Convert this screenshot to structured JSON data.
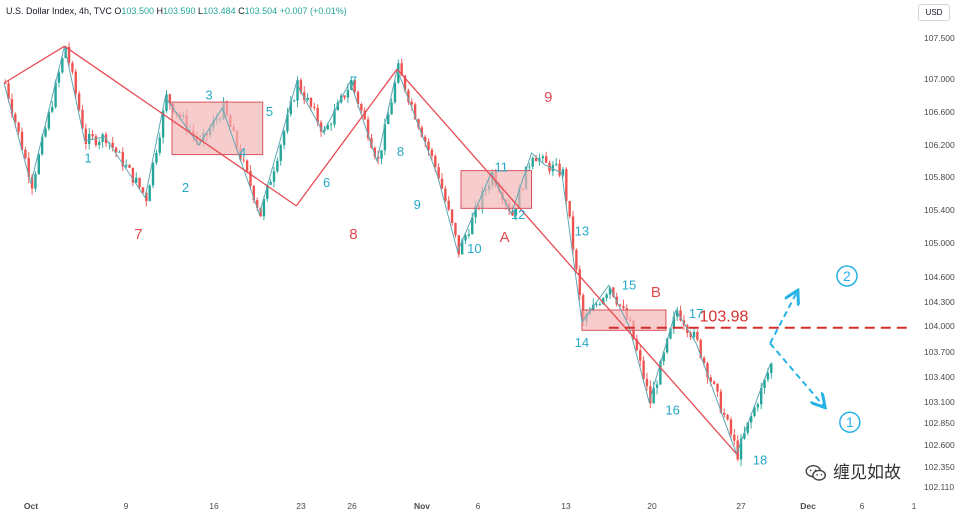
{
  "header": {
    "title": "U.S. Dollar Index, 4h, TVC",
    "o_label": "O",
    "o_value": "103.500",
    "h_label": "H",
    "h_value": "103.590",
    "l_label": "L",
    "l_value": "103.484",
    "c_label": "C",
    "c_value": "103.504",
    "change": "+0.007 (+0.01%)"
  },
  "currency_button": "USD",
  "watermark": "缠见如故",
  "chart_data": {
    "type": "candlestick",
    "x_axis": {
      "ticks": [
        "Oct",
        "9",
        "16",
        "23",
        "26",
        "Nov",
        "6",
        "13",
        "20",
        "27",
        "Dec",
        "6",
        "1"
      ]
    },
    "y_axis": {
      "ticks": [
        "107.500",
        "107.000",
        "106.600",
        "106.200",
        "105.800",
        "105.400",
        "105.000",
        "104.600",
        "104.300",
        "104.000",
        "103.700",
        "103.400",
        "103.100",
        "102.850",
        "102.600",
        "102.350",
        "102.110"
      ],
      "range": [
        102.05,
        107.8
      ]
    },
    "zigzag_points": [
      {
        "bar": 0,
        "price": 106.95
      },
      {
        "bar": 8,
        "price": 105.72
      },
      {
        "bar": 18,
        "price": 107.4
      },
      {
        "bar": 24,
        "price": 106.25
      },
      {
        "bar": 30,
        "price": 106.3
      },
      {
        "bar": 42,
        "price": 105.55
      },
      {
        "bar": 48,
        "price": 106.78
      },
      {
        "bar": 58,
        "price": 106.2
      },
      {
        "bar": 65,
        "price": 106.65
      },
      {
        "bar": 76,
        "price": 105.35
      },
      {
        "bar": 87,
        "price": 106.95
      },
      {
        "bar": 95,
        "price": 106.35
      },
      {
        "bar": 103,
        "price": 106.97
      },
      {
        "bar": 111,
        "price": 106.0
      },
      {
        "bar": 117,
        "price": 107.12
      },
      {
        "bar": 129,
        "price": 105.82
      },
      {
        "bar": 135,
        "price": 104.9
      },
      {
        "bar": 145,
        "price": 105.85
      },
      {
        "bar": 151,
        "price": 105.35
      },
      {
        "bar": 157,
        "price": 106.1
      },
      {
        "bar": 161,
        "price": 105.95
      },
      {
        "bar": 166,
        "price": 105.85
      },
      {
        "bar": 172,
        "price": 104.05
      },
      {
        "bar": 180,
        "price": 104.5
      },
      {
        "bar": 186,
        "price": 104.0
      },
      {
        "bar": 192,
        "price": 103.1
      },
      {
        "bar": 200,
        "price": 104.2
      },
      {
        "bar": 206,
        "price": 103.8
      },
      {
        "bar": 218,
        "price": 102.5
      },
      {
        "bar": 228,
        "price": 103.55
      }
    ],
    "big_segments": [
      {
        "from": {
          "bar": 0,
          "price": 106.95
        },
        "to": {
          "bar": 18,
          "price": 107.4
        }
      },
      {
        "from": {
          "bar": 18,
          "price": 107.4
        },
        "to": {
          "bar": 87,
          "price": 105.45
        }
      },
      {
        "from": {
          "bar": 87,
          "price": 105.45
        },
        "to": {
          "bar": 117,
          "price": 107.12
        }
      },
      {
        "from": {
          "bar": 117,
          "price": 107.12
        },
        "to": {
          "bar": 218,
          "price": 102.5
        }
      }
    ],
    "boxes": [
      {
        "bar_from": 50,
        "bar_to": 77,
        "price_top": 106.72,
        "price_bottom": 106.08
      },
      {
        "bar_from": 136,
        "bar_to": 157,
        "price_top": 105.88,
        "price_bottom": 105.42
      },
      {
        "bar_from": 172,
        "bar_to": 197,
        "price_top": 104.2,
        "price_bottom": 103.95
      }
    ],
    "level": {
      "price": 103.98,
      "label": "103.98",
      "bar_from": 180,
      "bar_to": 273
    },
    "scenarios": [
      {
        "label": "2",
        "from": {
          "bar": 228,
          "price": 103.8
        },
        "to": {
          "bar": 236,
          "price": 104.42
        }
      },
      {
        "label": "1",
        "from": {
          "bar": 228,
          "price": 103.8
        },
        "to": {
          "bar": 244,
          "price": 103.05
        }
      }
    ],
    "labels_small": [
      {
        "text": "1",
        "bar": 25,
        "price": 105.98
      },
      {
        "text": "2",
        "bar": 54,
        "price": 105.62
      },
      {
        "text": "3",
        "bar": 61,
        "price": 106.75
      },
      {
        "text": "4",
        "bar": 71,
        "price": 106.05
      },
      {
        "text": "5",
        "bar": 79,
        "price": 106.55
      },
      {
        "text": "6",
        "bar": 96,
        "price": 105.68
      },
      {
        "text": "7",
        "bar": 104,
        "price": 106.92
      },
      {
        "text": "8",
        "bar": 118,
        "price": 106.06
      },
      {
        "text": "9",
        "bar": 123,
        "price": 105.41
      },
      {
        "text": "10",
        "bar": 140,
        "price": 104.88
      },
      {
        "text": "11",
        "bar": 148,
        "price": 105.87
      },
      {
        "text": "12",
        "bar": 153,
        "price": 105.29
      },
      {
        "text": "13",
        "bar": 172,
        "price": 105.09
      },
      {
        "text": "14",
        "bar": 172,
        "price": 103.76
      },
      {
        "text": "15",
        "bar": 186,
        "price": 104.45
      },
      {
        "text": "16",
        "bar": 199,
        "price": 102.95
      },
      {
        "text": "17",
        "bar": 206,
        "price": 104.1
      },
      {
        "text": "18",
        "bar": 225,
        "price": 102.38
      }
    ],
    "labels_big": [
      {
        "text": "7",
        "bar": 40,
        "price": 105.05
      },
      {
        "text": "8",
        "bar": 104,
        "price": 105.05
      },
      {
        "text": "9",
        "bar": 162,
        "price": 106.72
      },
      {
        "text": "A",
        "bar": 149,
        "price": 105.01
      },
      {
        "text": "B",
        "bar": 194,
        "price": 104.36
      }
    ],
    "last_close": 103.504
  },
  "colors": {
    "up": "#26a69a",
    "down": "#ef5350",
    "red_line": "#e84b52",
    "teal_line": "#5fa8b5",
    "box_fill": "#f4b6b8",
    "box_stroke": "#d9535c",
    "level": "#d32f2f",
    "scenario": "#27b2e6",
    "label_teal": "#26a8c8",
    "label_red": "#e0484f",
    "axis_text": "#4a4a4a"
  }
}
